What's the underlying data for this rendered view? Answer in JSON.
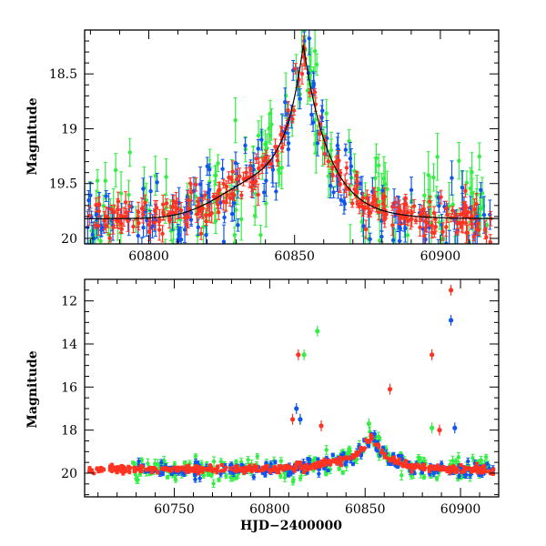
{
  "colors": {
    "green": "#33ee44",
    "blue": "#1155ee",
    "red": "#ff3322",
    "axes": "#000000",
    "model": "#000000"
  },
  "chart_data": [
    {
      "type": "scatter",
      "title": "",
      "xlabel": "",
      "ylabel": "Magnitude",
      "xlim": [
        60778,
        60920
      ],
      "ylim": [
        18.1,
        20.05
      ],
      "y_inverted": true,
      "xticks": [
        60800,
        60850,
        60900
      ],
      "yticks": [
        18.5,
        19,
        19.5,
        20
      ],
      "ytick_labels": [
        "18.5",
        "19",
        "19.5",
        "20"
      ],
      "error_bars": true,
      "model_curve": {
        "t0": 60853,
        "peak_mag": 18.33,
        "baseline_mag": 19.82,
        "rise_days": 16,
        "fall_days": 20
      },
      "series": [
        {
          "color": "green",
          "description_scatter": 0.25
        },
        {
          "color": "blue",
          "description_scatter": 0.18
        },
        {
          "color": "red",
          "description_scatter": 0.1
        }
      ]
    },
    {
      "type": "scatter",
      "title": "",
      "xlabel": "HJD−2400000",
      "ylabel": "Magnitude",
      "xlim": [
        60703,
        60920
      ],
      "ylim": [
        11,
        21.1
      ],
      "y_inverted": true,
      "xticks": [
        60750,
        60800,
        60850,
        60900
      ],
      "yticks": [
        12,
        14,
        16,
        18,
        20
      ],
      "ytick_labels": [
        "12",
        "14",
        "16",
        "18",
        "20"
      ],
      "error_bars": true,
      "series": [
        {
          "color": "green",
          "outliers": [
            [
              60825,
              13.4
            ],
            [
              60818,
              14.5
            ],
            [
              60852,
              17.7
            ],
            [
              60885,
              17.9
            ],
            [
              60816,
              17.5
            ]
          ]
        },
        {
          "color": "blue",
          "outliers": [
            [
              60895,
              12.9
            ],
            [
              60814,
              17.0
            ],
            [
              60897,
              17.9
            ],
            [
              60816,
              17.5
            ]
          ]
        },
        {
          "color": "red",
          "outliers": [
            [
              60895,
              11.5
            ],
            [
              60815,
              14.5
            ],
            [
              60885,
              14.5
            ],
            [
              60863,
              16.1
            ],
            [
              60827,
              17.8
            ],
            [
              60889,
              18.0
            ],
            [
              60812,
              17.5
            ]
          ]
        }
      ]
    }
  ]
}
